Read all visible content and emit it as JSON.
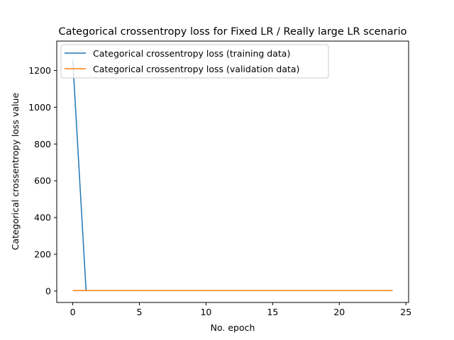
{
  "chart_data": {
    "type": "line",
    "title": "Categorical crossentropy loss for Fixed LR / Really large LR scenario",
    "xlabel": "No. epoch",
    "ylabel": "Categorical crossentropy loss value",
    "xlim": [
      -1.2,
      25.2
    ],
    "ylim": [
      -62,
      1360
    ],
    "xticks": [
      0,
      5,
      10,
      15,
      20,
      25
    ],
    "yticks": [
      0,
      200,
      400,
      600,
      800,
      1000,
      1200
    ],
    "grid": false,
    "legend_position": "top-left",
    "x": [
      0,
      1,
      2,
      3,
      4,
      5,
      6,
      7,
      8,
      9,
      10,
      11,
      12,
      13,
      14,
      15,
      16,
      17,
      18,
      19,
      20,
      21,
      22,
      23,
      24
    ],
    "series": [
      {
        "name": "Categorical crossentropy loss (training data)",
        "color": "#1f77b4",
        "values": [
          1260,
          2.4,
          2.3,
          2.3,
          2.3,
          2.3,
          2.3,
          2.3,
          2.3,
          2.3,
          2.3,
          2.3,
          2.3,
          2.3,
          2.3,
          2.3,
          2.3,
          2.3,
          2.3,
          2.3,
          2.3,
          2.3,
          2.3,
          2.3,
          2.3
        ]
      },
      {
        "name": "Categorical crossentropy loss (validation data)",
        "color": "#ff7f0e",
        "values": [
          2.3,
          2.3,
          2.3,
          2.3,
          2.3,
          2.3,
          2.3,
          2.3,
          2.3,
          2.3,
          2.3,
          2.3,
          2.3,
          2.3,
          2.3,
          2.3,
          2.3,
          2.3,
          2.3,
          2.3,
          2.3,
          2.3,
          2.3,
          2.3,
          2.3
        ]
      }
    ]
  }
}
